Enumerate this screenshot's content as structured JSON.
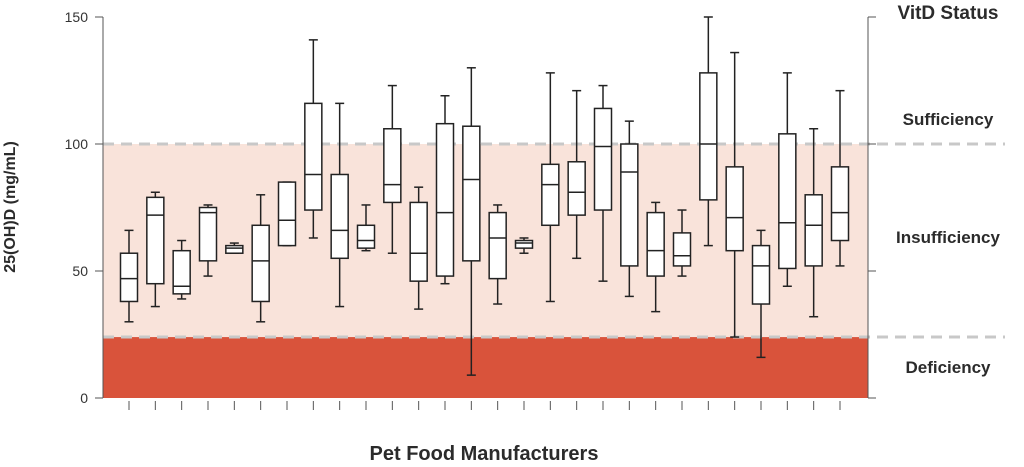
{
  "chart_data": {
    "type": "boxplot",
    "title": "",
    "xlabel": "Pet Food Manufacturers",
    "ylabel": "25(OH)D (mg/mL)",
    "ylim": [
      0,
      150
    ],
    "yticks": [
      "0",
      "50",
      "100",
      "150"
    ],
    "status_title": "VitD Status",
    "zones": [
      {
        "name": "Deficiency",
        "from": 0,
        "to": 24,
        "color": "#d9533b"
      },
      {
        "name": "Insufficiency",
        "from": 24,
        "to": 100,
        "color": "#f9e3da"
      },
      {
        "name": "Sufficiency",
        "from": 100,
        "to": 150,
        "color": "#ffffff"
      }
    ],
    "threshold_lines": [
      24,
      100
    ],
    "boxes": [
      {
        "min": 30,
        "q1": 38,
        "median": 47,
        "q3": 57,
        "max": 66
      },
      {
        "min": 36,
        "q1": 45,
        "median": 72,
        "q3": 79,
        "max": 81
      },
      {
        "min": 39,
        "q1": 41,
        "median": 44,
        "q3": 58,
        "max": 62
      },
      {
        "min": 48,
        "q1": 54,
        "median": 73,
        "q3": 75,
        "max": 76
      },
      {
        "min": 57,
        "q1": 57,
        "median": 59,
        "q3": 60,
        "max": 61
      },
      {
        "min": 30,
        "q1": 38,
        "median": 54,
        "q3": 68,
        "max": 80
      },
      {
        "min": 60,
        "q1": 60,
        "median": 70,
        "q3": 85,
        "max": 85
      },
      {
        "min": 63,
        "q1": 74,
        "median": 88,
        "q3": 116,
        "max": 141
      },
      {
        "min": 36,
        "q1": 55,
        "median": 66,
        "q3": 88,
        "max": 116
      },
      {
        "min": 58,
        "q1": 59,
        "median": 62,
        "q3": 68,
        "max": 76
      },
      {
        "min": 57,
        "q1": 77,
        "median": 84,
        "q3": 106,
        "max": 123
      },
      {
        "min": 35,
        "q1": 46,
        "median": 57,
        "q3": 77,
        "max": 83
      },
      {
        "min": 45,
        "q1": 48,
        "median": 73,
        "q3": 108,
        "max": 119
      },
      {
        "min": 9,
        "q1": 54,
        "median": 86,
        "q3": 107,
        "max": 130
      },
      {
        "min": 37,
        "q1": 47,
        "median": 63,
        "q3": 73,
        "max": 76
      },
      {
        "min": 57,
        "q1": 59,
        "median": 61,
        "q3": 62,
        "max": 63
      },
      {
        "min": 38,
        "q1": 68,
        "median": 84,
        "q3": 92,
        "max": 128
      },
      {
        "min": 55,
        "q1": 72,
        "median": 81,
        "q3": 93,
        "max": 121
      },
      {
        "min": 46,
        "q1": 74,
        "median": 99,
        "q3": 114,
        "max": 123
      },
      {
        "min": 40,
        "q1": 52,
        "median": 89,
        "q3": 100,
        "max": 109
      },
      {
        "min": 34,
        "q1": 48,
        "median": 58,
        "q3": 73,
        "max": 77
      },
      {
        "min": 48,
        "q1": 52,
        "median": 56,
        "q3": 65,
        "max": 74
      },
      {
        "min": 60,
        "q1": 78,
        "median": 100,
        "q3": 128,
        "max": 150
      },
      {
        "min": 24,
        "q1": 58,
        "median": 71,
        "q3": 91,
        "max": 136
      },
      {
        "min": 16,
        "q1": 37,
        "median": 52,
        "q3": 60,
        "max": 66
      },
      {
        "min": 44,
        "q1": 51,
        "median": 69,
        "q3": 104,
        "max": 128
      },
      {
        "min": 32,
        "q1": 52,
        "median": 68,
        "q3": 80,
        "max": 106
      },
      {
        "min": 52,
        "q1": 62,
        "median": 73,
        "q3": 91,
        "max": 121
      }
    ],
    "grid": false,
    "legend": "none"
  }
}
